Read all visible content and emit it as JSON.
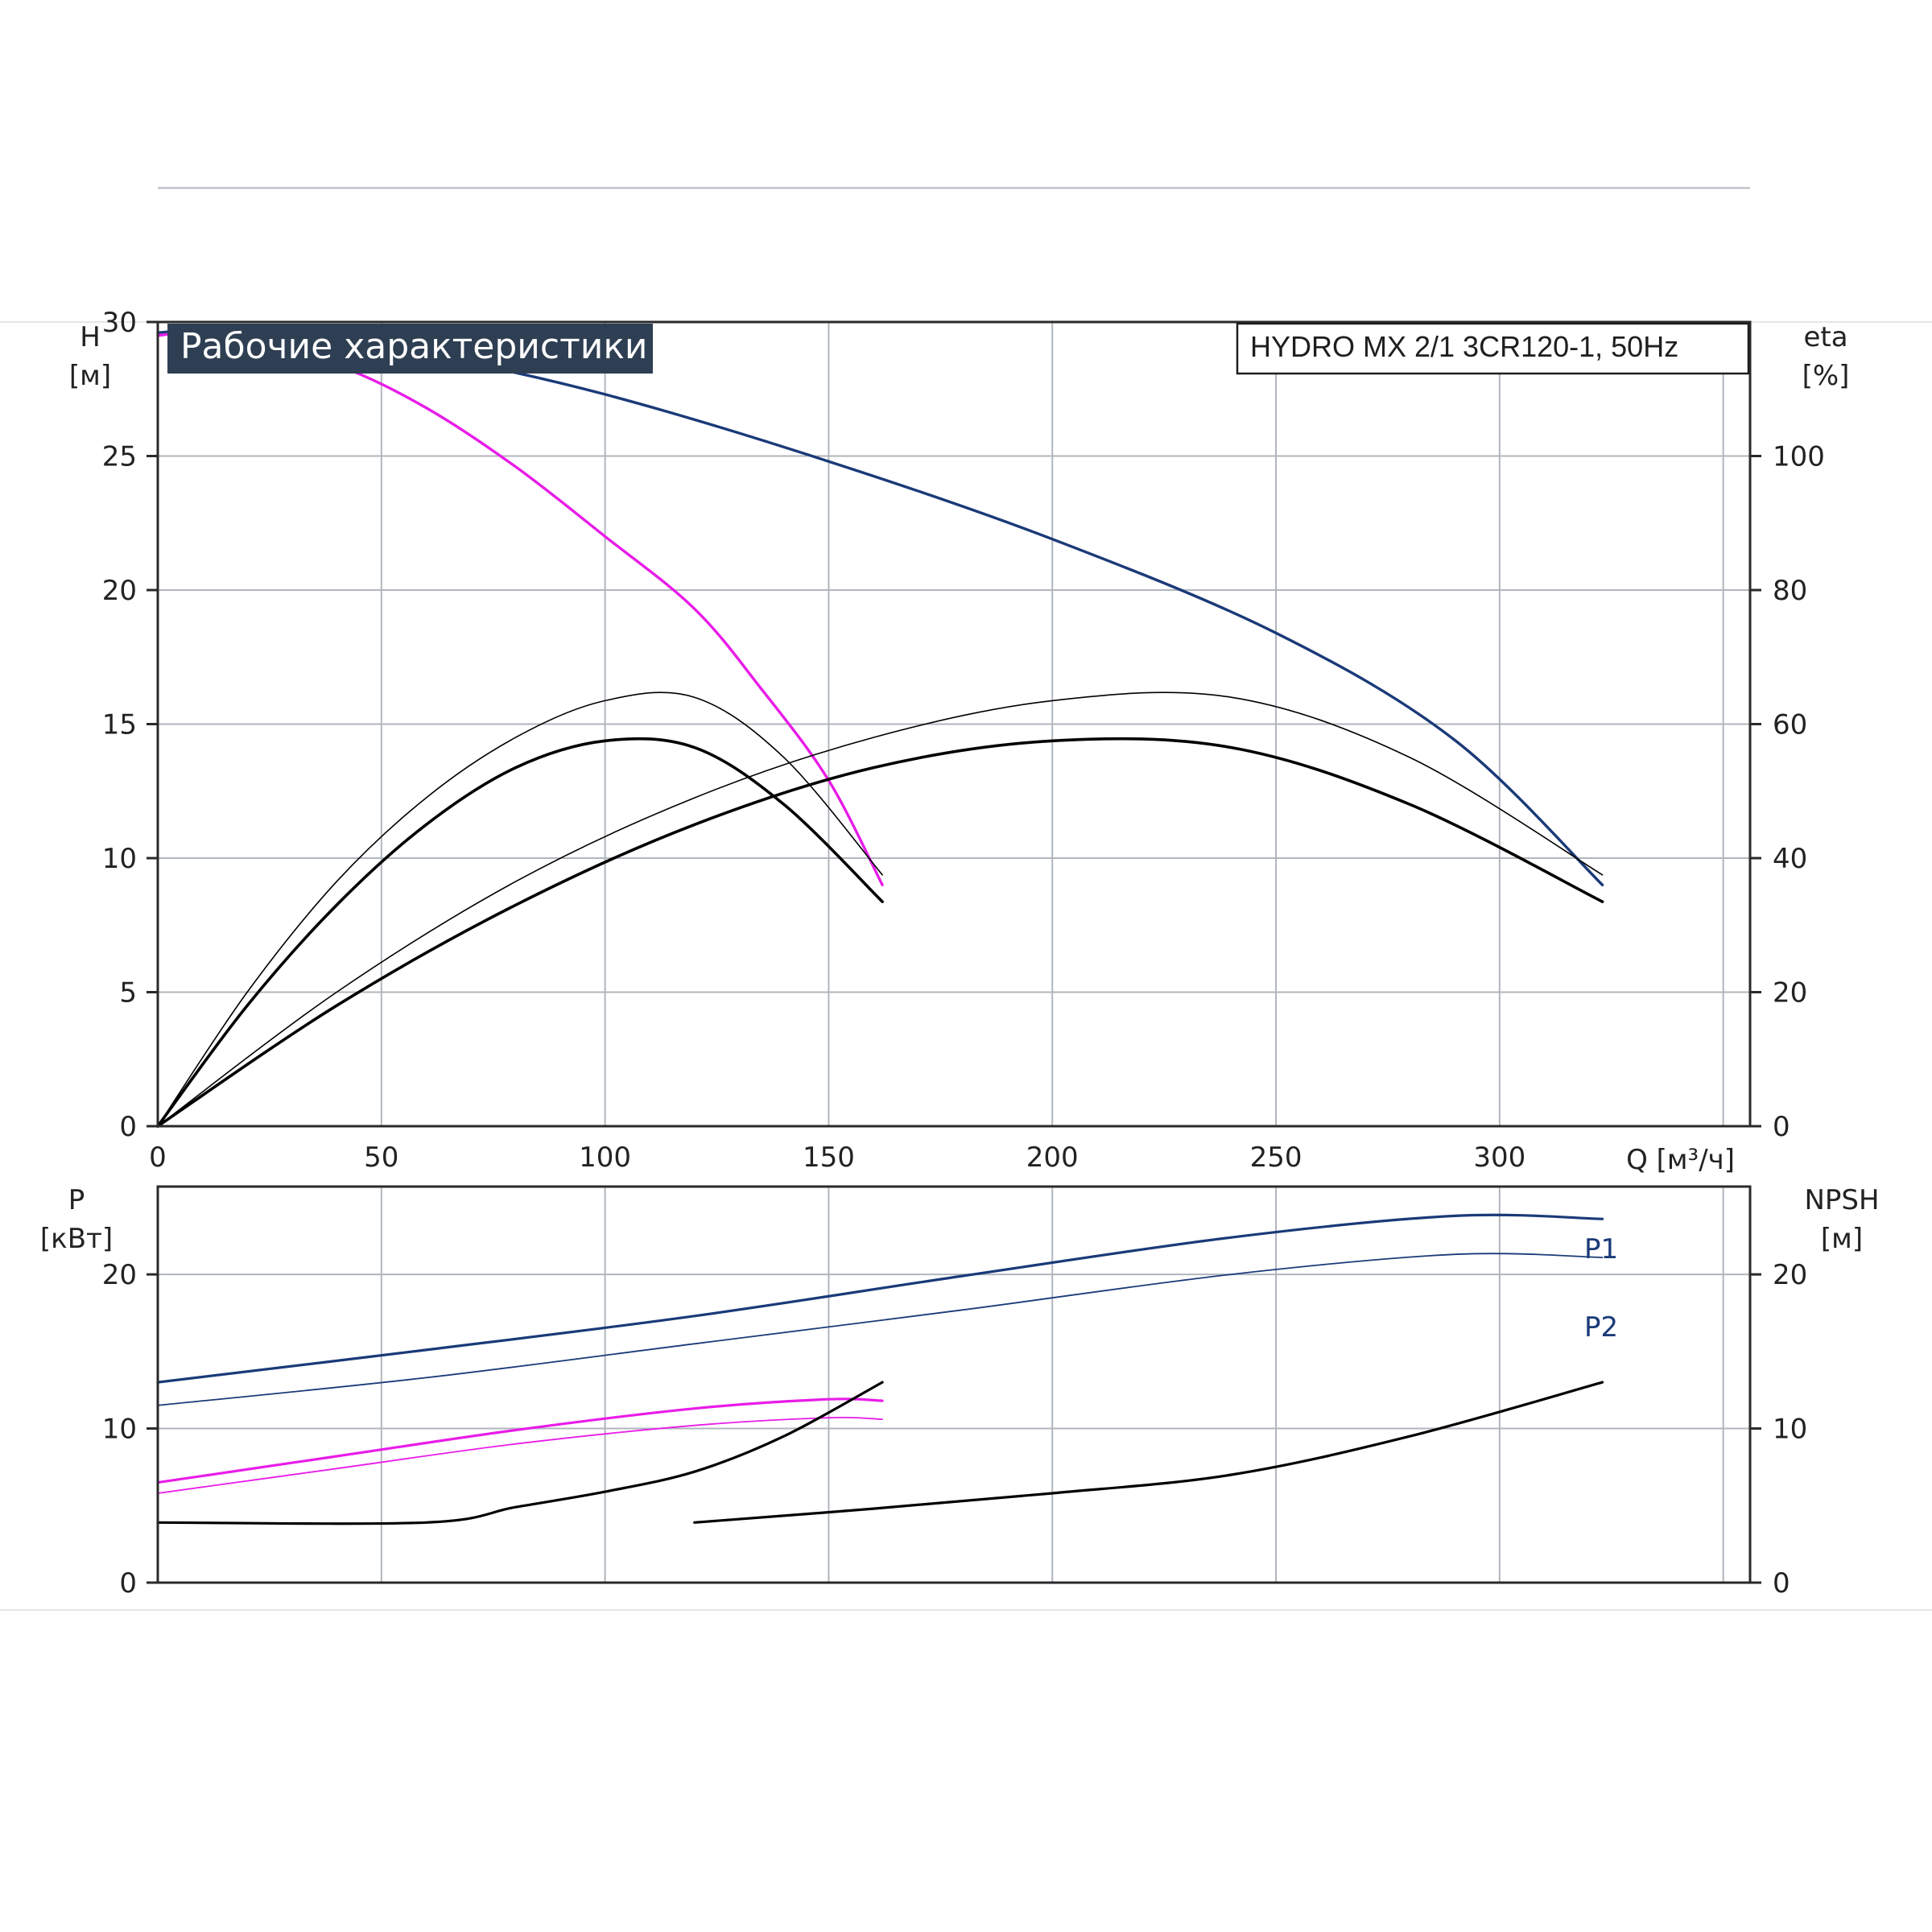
{
  "chart_data": [
    {
      "type": "line",
      "title": "Рабочие характеристики",
      "subtitle": "HYDRO MX 2/1 3CR120-1, 50Hz",
      "ylabel_left": "H",
      "ylabel_left_unit": "[м]",
      "ylabel_right": "eta",
      "ylabel_right_unit": "[%]",
      "xlabel": "Q [м³/ч]",
      "xlim": [
        0,
        356
      ],
      "ylim": [
        0,
        30
      ],
      "ylim_right": [
        0,
        120
      ],
      "x_ticks": [
        "0",
        "50",
        "100",
        "150",
        "200",
        "250",
        "300"
      ],
      "y_ticks_left": [
        "0",
        "5",
        "10",
        "15",
        "20",
        "25",
        "30"
      ],
      "y_ticks_right": [
        "0",
        "20",
        "40",
        "60",
        "80",
        "100"
      ],
      "grid": true,
      "series": [
        {
          "name": "",
          "axis": "left",
          "color": "#1a3a78",
          "width": 3.4,
          "x": [
            0,
            10,
            30,
            60,
            100,
            150,
            200,
            250,
            290,
            323
          ],
          "y": [
            29.6,
            29.7,
            29.6,
            28.8,
            27.3,
            24.8,
            21.9,
            18.4,
            14.4,
            9.0
          ]
        },
        {
          "name": "",
          "axis": "left",
          "color": "#e81ce8",
          "width": 3.4,
          "x": [
            0,
            15,
            40,
            60,
            80,
            100,
            120,
            135,
            150,
            162
          ],
          "y": [
            29.5,
            29.6,
            28.4,
            26.8,
            24.6,
            22.0,
            19.3,
            16.3,
            12.9,
            9.0
          ]
        },
        {
          "name": "",
          "axis": "right",
          "color": "#000000",
          "width": 1.6,
          "x": [
            0,
            20,
            40,
            60,
            80,
            100,
            120,
            140,
            162
          ],
          "y": [
            0,
            20,
            36.5,
            49,
            58,
            63.5,
            64,
            55,
            37.5
          ]
        },
        {
          "name": "",
          "axis": "right",
          "color": "#000000",
          "width": 3.6,
          "x": [
            0,
            20,
            40,
            60,
            80,
            100,
            120,
            140,
            162
          ],
          "y": [
            0,
            18,
            33,
            45,
            53.5,
            57.5,
            56.5,
            48,
            33.5
          ]
        },
        {
          "name": "",
          "axis": "right",
          "color": "#000000",
          "width": 1.6,
          "x": [
            0,
            40,
            80,
            120,
            160,
            200,
            240,
            280,
            323
          ],
          "y": [
            0,
            20,
            36.5,
            49,
            58,
            63.5,
            64,
            55,
            37.5
          ]
        },
        {
          "name": "",
          "axis": "right",
          "color": "#000000",
          "width": 3.6,
          "x": [
            0,
            40,
            80,
            120,
            160,
            200,
            240,
            280,
            323
          ],
          "y": [
            0,
            18,
            33,
            45,
            53.5,
            57.5,
            56.5,
            48,
            33.5
          ]
        }
      ]
    },
    {
      "type": "line",
      "ylabel_left": "P",
      "ylabel_left_unit": "[кВт]",
      "ylabel_right": "NPSH",
      "ylabel_right_unit": "[м]",
      "xlim": [
        0,
        356
      ],
      "ylim": [
        0,
        25.7
      ],
      "ylim_right": [
        0,
        25.7
      ],
      "y_ticks_left": [
        "0",
        "10",
        "20"
      ],
      "y_ticks_right": [
        "0",
        "10",
        "20"
      ],
      "grid": true,
      "labels": {
        "p1": "P1",
        "p2": "P2"
      },
      "series": [
        {
          "name": "P1",
          "axis": "left",
          "color": "#1a3a78",
          "width": 3.2,
          "x": [
            0,
            60,
            120,
            180,
            240,
            290,
            323
          ],
          "y": [
            13.0,
            15.1,
            17.3,
            19.9,
            22.4,
            23.8,
            23.6
          ]
        },
        {
          "name": "P2",
          "axis": "left",
          "color": "#1a3a78",
          "width": 1.8,
          "x": [
            0,
            60,
            120,
            180,
            240,
            290,
            323
          ],
          "y": [
            11.5,
            13.3,
            15.5,
            17.7,
            20.0,
            21.3,
            21.1
          ]
        },
        {
          "name": "",
          "axis": "left",
          "color": "#e81ce8",
          "width": 3.2,
          "x": [
            0,
            40,
            80,
            120,
            150,
            162
          ],
          "y": [
            6.5,
            8.2,
            9.9,
            11.3,
            11.9,
            11.8
          ]
        },
        {
          "name": "",
          "axis": "left",
          "color": "#e81ce8",
          "width": 1.8,
          "x": [
            0,
            40,
            80,
            120,
            150,
            162
          ],
          "y": [
            5.8,
            7.4,
            9.0,
            10.2,
            10.7,
            10.6
          ]
        },
        {
          "name": "",
          "axis": "right",
          "color": "#000000",
          "width": 3.2,
          "x": [
            0,
            60,
            80,
            100,
            120,
            140,
            162
          ],
          "y": [
            3.9,
            3.9,
            4.9,
            5.9,
            7.2,
            9.5,
            13.0
          ]
        },
        {
          "name": "",
          "axis": "right",
          "color": "#000000",
          "width": 3.2,
          "x": [
            120,
            160,
            200,
            240,
            280,
            323
          ],
          "y": [
            3.9,
            4.8,
            5.8,
            7.0,
            9.5,
            13.0
          ]
        }
      ]
    }
  ]
}
